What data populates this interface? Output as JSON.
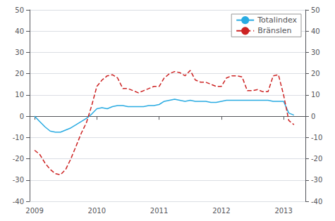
{
  "chart_data": {
    "type": "line",
    "x": [
      2009.0,
      2009.083,
      2009.167,
      2009.25,
      2009.333,
      2009.417,
      2009.5,
      2009.583,
      2009.667,
      2009.75,
      2009.833,
      2009.917,
      2010.0,
      2010.083,
      2010.167,
      2010.25,
      2010.333,
      2010.417,
      2010.5,
      2010.583,
      2010.667,
      2010.75,
      2010.833,
      2010.917,
      2011.0,
      2011.083,
      2011.167,
      2011.25,
      2011.333,
      2011.417,
      2011.5,
      2011.583,
      2011.667,
      2011.75,
      2011.833,
      2011.917,
      2012.0,
      2012.083,
      2012.167,
      2012.25,
      2012.333,
      2012.417,
      2012.5,
      2012.583,
      2012.667,
      2012.75,
      2012.833,
      2012.917,
      2013.0,
      2013.083,
      2013.167
    ],
    "series": [
      {
        "name": "Totalindex",
        "color": "#29ABE2",
        "line_style": "solid",
        "values": [
          0.0,
          -2.5,
          -5.0,
          -7.0,
          -7.5,
          -7.5,
          -6.5,
          -5.5,
          -4.0,
          -2.5,
          -1.0,
          1.0,
          3.5,
          4.0,
          3.5,
          4.5,
          5.0,
          5.0,
          4.5,
          4.5,
          4.5,
          4.5,
          5.0,
          5.0,
          5.5,
          7.0,
          7.5,
          8.0,
          7.5,
          7.0,
          7.5,
          7.0,
          7.0,
          7.0,
          6.5,
          6.5,
          7.0,
          7.5,
          7.5,
          7.5,
          7.5,
          7.5,
          7.5,
          7.5,
          7.5,
          7.5,
          7.0,
          7.0,
          7.0,
          1.5,
          0.5
        ]
      },
      {
        "name": "Bränslen",
        "color": "#CC2222",
        "line_style": "dashed",
        "values": [
          -16.0,
          -18.0,
          -22.0,
          -25.0,
          -27.0,
          -27.5,
          -25.0,
          -20.0,
          -14.0,
          -8.0,
          -3.0,
          5.0,
          14.0,
          17.0,
          19.0,
          19.5,
          18.0,
          13.0,
          13.0,
          12.0,
          11.0,
          12.0,
          13.0,
          14.0,
          14.0,
          18.0,
          20.0,
          21.0,
          20.5,
          19.0,
          21.5,
          17.0,
          16.0,
          16.0,
          15.0,
          14.0,
          14.0,
          18.0,
          19.0,
          19.0,
          18.5,
          12.0,
          12.0,
          12.5,
          11.5,
          11.5,
          19.0,
          19.5,
          10.0,
          -2.0,
          -4.0
        ]
      }
    ],
    "xlim": [
      2008.92,
      2013.35
    ],
    "xticks": [
      2009,
      2010,
      2011,
      2012,
      2013
    ],
    "ylim": [
      -40,
      50
    ],
    "yticks": [
      -40,
      -30,
      -20,
      -10,
      0,
      10,
      20,
      30,
      40,
      50
    ],
    "y2lim": [
      -40,
      50
    ],
    "y2ticks": [
      -40,
      -30,
      -20,
      -10,
      0,
      10,
      20,
      30,
      40,
      50
    ],
    "grid": true,
    "legend": "upper right"
  }
}
